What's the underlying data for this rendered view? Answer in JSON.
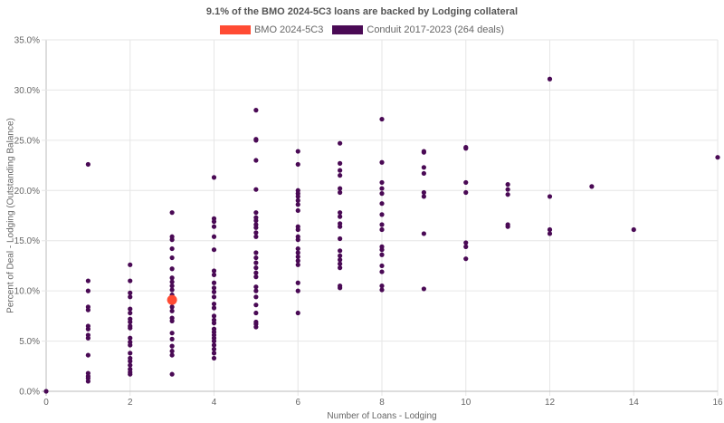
{
  "chart_data": {
    "type": "scatter",
    "title": "9.1% of the BMO 2024-5C3 loans are backed by Lodging collateral",
    "xlabel": "Number of Loans - Lodging",
    "ylabel": "Percent of Deal - Lodging (Outstanding Balance)",
    "xlim": [
      0,
      16
    ],
    "ylim": [
      0,
      35
    ],
    "x_ticks": [
      "0",
      "2",
      "4",
      "6",
      "8",
      "10",
      "12",
      "14",
      "16"
    ],
    "y_ticks": [
      "0.0%",
      "5.0%",
      "10.0%",
      "15.0%",
      "20.0%",
      "25.0%",
      "30.0%",
      "35.0%"
    ],
    "grid": true,
    "legend_position": "top-center",
    "series": [
      {
        "name": "BMO 2024-5C3",
        "color": "#ff4b33",
        "points": [
          [
            3,
            9.1
          ]
        ]
      },
      {
        "name": "Conduit 2017-2023 (264 deals)",
        "color": "#4a0a55",
        "points": [
          [
            0,
            0.0
          ],
          [
            1,
            22.6
          ],
          [
            1,
            11.0
          ],
          [
            1,
            10.0
          ],
          [
            1,
            8.4
          ],
          [
            1,
            8.1
          ],
          [
            1,
            6.5
          ],
          [
            1,
            6.2
          ],
          [
            1,
            5.6
          ],
          [
            1,
            5.3
          ],
          [
            1,
            3.6
          ],
          [
            1,
            1.8
          ],
          [
            1,
            1.5
          ],
          [
            1,
            1.3
          ],
          [
            1,
            1.0
          ],
          [
            2,
            12.6
          ],
          [
            2,
            11.0
          ],
          [
            2,
            9.8
          ],
          [
            2,
            9.4
          ],
          [
            2,
            8.2
          ],
          [
            2,
            7.8
          ],
          [
            2,
            7.2
          ],
          [
            2,
            6.9
          ],
          [
            2,
            6.5
          ],
          [
            2,
            6.3
          ],
          [
            2,
            5.3
          ],
          [
            2,
            4.9
          ],
          [
            2,
            4.6
          ],
          [
            2,
            3.8
          ],
          [
            2,
            3.3
          ],
          [
            2,
            3.0
          ],
          [
            2,
            2.6
          ],
          [
            2,
            2.2
          ],
          [
            2,
            1.9
          ],
          [
            2,
            1.7
          ],
          [
            3,
            17.8
          ],
          [
            3,
            15.4
          ],
          [
            3,
            15.1
          ],
          [
            3,
            14.2
          ],
          [
            3,
            13.3
          ],
          [
            3,
            12.2
          ],
          [
            3,
            11.3
          ],
          [
            3,
            10.9
          ],
          [
            3,
            10.5
          ],
          [
            3,
            10.1
          ],
          [
            3,
            9.6
          ],
          [
            3,
            8.4
          ],
          [
            3,
            8.0
          ],
          [
            3,
            7.3
          ],
          [
            3,
            7.0
          ],
          [
            3,
            5.8
          ],
          [
            3,
            5.2
          ],
          [
            3,
            4.5
          ],
          [
            3,
            4.0
          ],
          [
            3,
            3.6
          ],
          [
            3,
            1.7
          ],
          [
            4,
            21.3
          ],
          [
            4,
            17.2
          ],
          [
            4,
            16.9
          ],
          [
            4,
            16.4
          ],
          [
            4,
            15.4
          ],
          [
            4,
            14.1
          ],
          [
            4,
            12.0
          ],
          [
            4,
            11.6
          ],
          [
            4,
            10.8
          ],
          [
            4,
            10.3
          ],
          [
            4,
            9.9
          ],
          [
            4,
            9.4
          ],
          [
            4,
            8.7
          ],
          [
            4,
            8.3
          ],
          [
            4,
            7.5
          ],
          [
            4,
            7.1
          ],
          [
            4,
            6.8
          ],
          [
            4,
            6.2
          ],
          [
            4,
            5.9
          ],
          [
            4,
            5.6
          ],
          [
            4,
            5.3
          ],
          [
            4,
            5.0
          ],
          [
            4,
            4.6
          ],
          [
            4,
            4.2
          ],
          [
            4,
            3.8
          ],
          [
            4,
            3.3
          ],
          [
            5,
            28.0
          ],
          [
            5,
            25.1
          ],
          [
            5,
            25.0
          ],
          [
            5,
            23.0
          ],
          [
            5,
            20.1
          ],
          [
            5,
            17.8
          ],
          [
            5,
            17.3
          ],
          [
            5,
            17.0
          ],
          [
            5,
            16.6
          ],
          [
            5,
            16.3
          ],
          [
            5,
            15.8
          ],
          [
            5,
            15.4
          ],
          [
            5,
            13.8
          ],
          [
            5,
            13.3
          ],
          [
            5,
            12.8
          ],
          [
            5,
            12.3
          ],
          [
            5,
            11.8
          ],
          [
            5,
            11.4
          ],
          [
            5,
            10.4
          ],
          [
            5,
            10.0
          ],
          [
            5,
            9.4
          ],
          [
            5,
            8.6
          ],
          [
            5,
            7.8
          ],
          [
            5,
            6.9
          ],
          [
            5,
            6.7
          ],
          [
            5,
            6.4
          ],
          [
            6,
            23.9
          ],
          [
            6,
            22.6
          ],
          [
            6,
            20.0
          ],
          [
            6,
            19.7
          ],
          [
            6,
            19.4
          ],
          [
            6,
            19.0
          ],
          [
            6,
            18.6
          ],
          [
            6,
            18.0
          ],
          [
            6,
            16.4
          ],
          [
            6,
            16.1
          ],
          [
            6,
            15.4
          ],
          [
            6,
            15.1
          ],
          [
            6,
            14.2
          ],
          [
            6,
            13.8
          ],
          [
            6,
            13.4
          ],
          [
            6,
            13.0
          ],
          [
            6,
            12.6
          ],
          [
            6,
            10.8
          ],
          [
            6,
            10.0
          ],
          [
            6,
            7.8
          ],
          [
            7,
            24.7
          ],
          [
            7,
            22.7
          ],
          [
            7,
            22.0
          ],
          [
            7,
            21.5
          ],
          [
            7,
            20.2
          ],
          [
            7,
            19.8
          ],
          [
            7,
            17.8
          ],
          [
            7,
            17.4
          ],
          [
            7,
            16.7
          ],
          [
            7,
            16.4
          ],
          [
            7,
            15.2
          ],
          [
            7,
            14.0
          ],
          [
            7,
            13.5
          ],
          [
            7,
            13.1
          ],
          [
            7,
            12.7
          ],
          [
            7,
            12.3
          ],
          [
            7,
            10.5
          ],
          [
            7,
            10.3
          ],
          [
            8,
            27.1
          ],
          [
            8,
            22.8
          ],
          [
            8,
            20.8
          ],
          [
            8,
            20.2
          ],
          [
            8,
            19.7
          ],
          [
            8,
            18.7
          ],
          [
            8,
            17.6
          ],
          [
            8,
            16.6
          ],
          [
            8,
            16.1
          ],
          [
            8,
            14.4
          ],
          [
            8,
            14.1
          ],
          [
            8,
            13.6
          ],
          [
            8,
            12.5
          ],
          [
            8,
            11.9
          ],
          [
            8,
            10.5
          ],
          [
            8,
            10.1
          ],
          [
            9,
            23.9
          ],
          [
            9,
            23.8
          ],
          [
            9,
            22.3
          ],
          [
            9,
            21.7
          ],
          [
            9,
            19.8
          ],
          [
            9,
            19.4
          ],
          [
            9,
            15.7
          ],
          [
            9,
            10.2
          ],
          [
            10,
            24.3
          ],
          [
            10,
            24.2
          ],
          [
            10,
            20.8
          ],
          [
            10,
            19.8
          ],
          [
            10,
            14.8
          ],
          [
            10,
            14.4
          ],
          [
            10,
            13.2
          ],
          [
            11,
            20.6
          ],
          [
            11,
            20.1
          ],
          [
            11,
            19.6
          ],
          [
            11,
            16.6
          ],
          [
            11,
            16.4
          ],
          [
            12,
            31.1
          ],
          [
            12,
            19.4
          ],
          [
            12,
            16.1
          ],
          [
            12,
            15.7
          ],
          [
            13,
            20.4
          ],
          [
            14,
            16.1
          ],
          [
            16,
            23.3
          ]
        ]
      }
    ]
  }
}
